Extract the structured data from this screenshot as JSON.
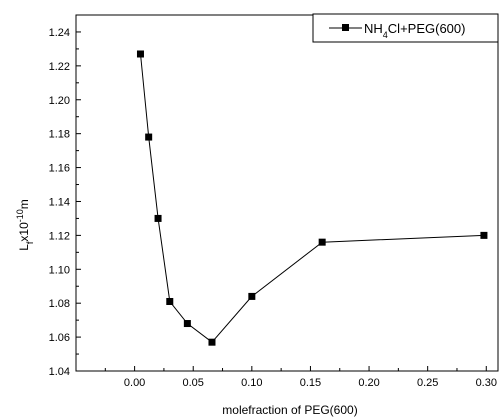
{
  "chart_data": {
    "type": "line",
    "title": "",
    "xlabel": "molefraction of PEG(600)",
    "ylabel": {
      "main": "L",
      "sub": "f",
      "mid": "x10",
      "sup": "-10",
      "unit": "m"
    },
    "xlim": [
      -0.05,
      0.31
    ],
    "ylim": [
      1.04,
      1.25
    ],
    "x_ticks": [
      0.0,
      0.05,
      0.1,
      0.15,
      0.2,
      0.25,
      0.3
    ],
    "x_tick_labels": [
      "0.00",
      "0.05",
      "0.10",
      "0.15",
      "0.20",
      "0.25",
      "0.30"
    ],
    "y_ticks": [
      1.04,
      1.06,
      1.08,
      1.1,
      1.12,
      1.14,
      1.16,
      1.18,
      1.2,
      1.22,
      1.24
    ],
    "y_tick_labels": [
      "1.04",
      "1.06",
      "1.08",
      "1.10",
      "1.12",
      "1.14",
      "1.16",
      "1.18",
      "1.20",
      "1.22",
      "1.24"
    ],
    "grid": false,
    "legend_position": "top-right",
    "series": [
      {
        "name": {
          "pre": "NH",
          "sub": "4",
          "post": "Cl+PEG(600)"
        },
        "marker": "square",
        "color": "#000000",
        "x": [
          0.005,
          0.012,
          0.02,
          0.03,
          0.045,
          0.066,
          0.1,
          0.16,
          0.298
        ],
        "y": [
          1.227,
          1.178,
          1.13,
          1.081,
          1.068,
          1.057,
          1.084,
          1.116,
          1.12
        ]
      }
    ]
  }
}
